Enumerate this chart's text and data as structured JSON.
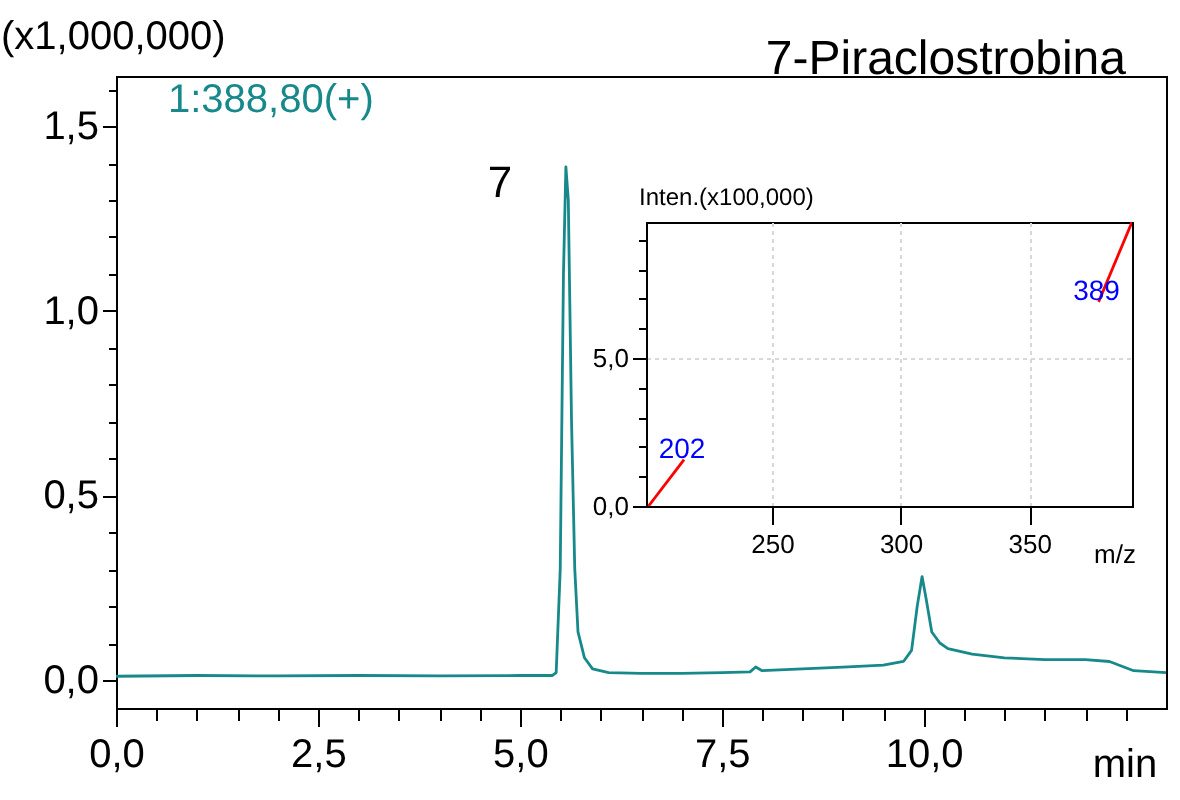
{
  "chart_data": [
    {
      "type": "line",
      "title": "7-Piraclostrobina",
      "xlabel": "min",
      "ylabel": "(x1,000,000)",
      "x": [
        0,
        1,
        2,
        3,
        4,
        5,
        5.4,
        5.45,
        5.5,
        5.54,
        5.57,
        5.6,
        5.64,
        5.68,
        5.72,
        5.8,
        5.9,
        6.1,
        6.5,
        7.0,
        7.5,
        7.85,
        7.92,
        8.0,
        8.5,
        9.0,
        9.5,
        9.75,
        9.85,
        9.92,
        9.98,
        10.03,
        10.1,
        10.2,
        10.3,
        10.6,
        11.0,
        11.5,
        12.0,
        12.3,
        12.6,
        13.0
      ],
      "series": [
        {
          "name": "1:388,80(+)",
          "color": "#17898a",
          "values": [
            0.01,
            0.012,
            0.011,
            0.012,
            0.011,
            0.012,
            0.012,
            0.02,
            0.3,
            1.1,
            1.39,
            1.3,
            0.7,
            0.3,
            0.13,
            0.06,
            0.03,
            0.02,
            0.018,
            0.018,
            0.02,
            0.022,
            0.035,
            0.025,
            0.03,
            0.035,
            0.04,
            0.05,
            0.08,
            0.2,
            0.28,
            0.22,
            0.13,
            0.1,
            0.085,
            0.07,
            0.06,
            0.055,
            0.055,
            0.05,
            0.025,
            0.02
          ]
        }
      ],
      "xlim": [
        0,
        13.0
      ],
      "ylim": [
        -0.076,
        1.636
      ],
      "xticks": [
        {
          "value": 0,
          "label": "0,0"
        },
        {
          "value": 0.5,
          "label": null
        },
        {
          "value": 1,
          "label": null
        },
        {
          "value": 1.5,
          "label": null
        },
        {
          "value": 2,
          "label": null
        },
        {
          "value": 2.5,
          "label": "2,5"
        },
        {
          "value": 3,
          "label": null
        },
        {
          "value": 3.5,
          "label": null
        },
        {
          "value": 4,
          "label": null
        },
        {
          "value": 4.5,
          "label": null
        },
        {
          "value": 5,
          "label": "5,0"
        },
        {
          "value": 5.5,
          "label": null
        },
        {
          "value": 6,
          "label": null
        },
        {
          "value": 6.5,
          "label": null
        },
        {
          "value": 7,
          "label": null
        },
        {
          "value": 7.5,
          "label": "7,5"
        },
        {
          "value": 8,
          "label": null
        },
        {
          "value": 8.5,
          "label": null
        },
        {
          "value": 9,
          "label": null
        },
        {
          "value": 9.5,
          "label": null
        },
        {
          "value": 10,
          "label": "10,0"
        },
        {
          "value": 10.5,
          "label": null
        },
        {
          "value": 11,
          "label": null
        },
        {
          "value": 11.5,
          "label": null
        },
        {
          "value": 12,
          "label": null
        },
        {
          "value": 12.5,
          "label": null
        }
      ],
      "yticks": [
        {
          "value": 0,
          "label": "0,0"
        },
        {
          "value": 0.1,
          "label": null
        },
        {
          "value": 0.2,
          "label": null
        },
        {
          "value": 0.3,
          "label": null
        },
        {
          "value": 0.4,
          "label": null
        },
        {
          "value": 0.5,
          "label": "0,5"
        },
        {
          "value": 0.6,
          "label": null
        },
        {
          "value": 0.7,
          "label": null
        },
        {
          "value": 0.8,
          "label": null
        },
        {
          "value": 0.9,
          "label": null
        },
        {
          "value": 1,
          "label": "1,0"
        },
        {
          "value": 1.1,
          "label": null
        },
        {
          "value": 1.2,
          "label": null
        },
        {
          "value": 1.3,
          "label": null
        },
        {
          "value": 1.4,
          "label": null
        },
        {
          "value": 1.5,
          "label": "1,5"
        },
        {
          "value": 1.6,
          "label": null
        }
      ],
      "annotations": [
        {
          "text": "7",
          "x": 5.57,
          "y": 1.39
        }
      ],
      "legend": "top left",
      "grid": false
    },
    {
      "type": "line",
      "xlabel": "m/z",
      "ylabel": "Inten.(x100,000)",
      "series": [
        {
          "color": "#ff0000",
          "x": [
            202,
            215.8
          ],
          "values": [
            0,
            1.57
          ]
        },
        {
          "color": "#ff0000",
          "x": [
            377,
            390
          ],
          "values": [
            6.9,
            9.6
          ]
        }
      ],
      "xlim": [
        201,
        390
      ],
      "ylim": [
        0,
        9.6
      ],
      "xticks": [
        250,
        300,
        350
      ],
      "yticks": [
        {
          "value": 0,
          "label": "0,0"
        },
        {
          "value": 1,
          "label": null
        },
        {
          "value": 2,
          "label": null
        },
        {
          "value": 3,
          "label": null
        },
        {
          "value": 4,
          "label": null
        },
        {
          "value": 5,
          "label": "5,0"
        },
        {
          "value": 6,
          "label": null
        },
        {
          "value": 7,
          "label": null
        },
        {
          "value": 8,
          "label": null
        },
        {
          "value": 9,
          "label": null
        }
      ],
      "annotations": [
        {
          "text": "202",
          "x": 215.8,
          "y": 1.57
        },
        {
          "text": "389",
          "x": 377,
          "y": 6.9
        }
      ],
      "grid": true
    }
  ]
}
